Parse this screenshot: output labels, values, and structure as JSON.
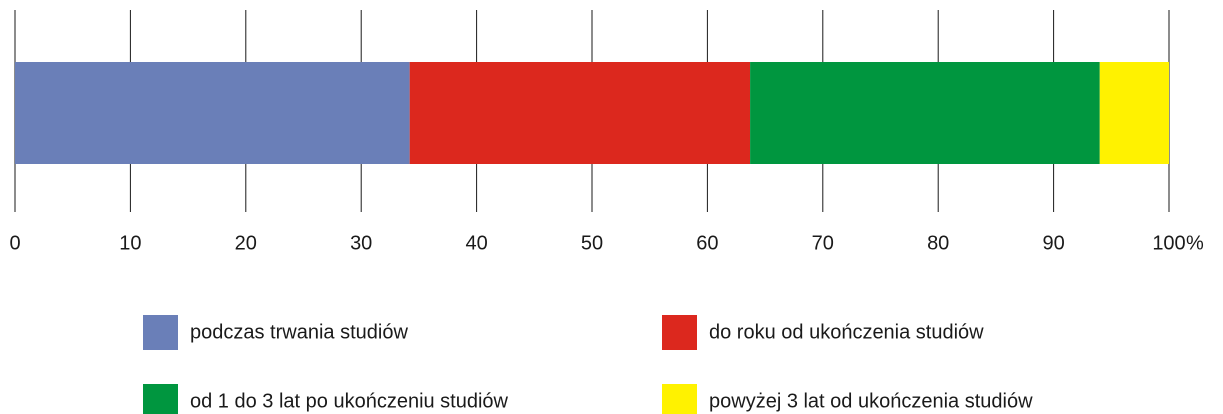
{
  "chart_data": {
    "type": "bar",
    "orientation": "horizontal",
    "stacked": true,
    "categories": [
      null
    ],
    "series": [
      {
        "name": "podczas trwania studiów",
        "color": "#6a7fb8",
        "values": [
          34.2
        ]
      },
      {
        "name": "do roku od ukończenia studiów",
        "color": "#dc281e",
        "values": [
          29.5
        ]
      },
      {
        "name": "od 1 do 3 lat po ukończeniu studiów",
        "color": "#00963f",
        "values": [
          30.3
        ]
      },
      {
        "name": "powyżej 3 lat od ukończenia studiów",
        "color": "#fff200",
        "values": [
          6.0
        ]
      }
    ],
    "xlabel": "%",
    "xlim": [
      0,
      100
    ],
    "xticks": [
      0,
      10,
      20,
      30,
      40,
      50,
      60,
      70,
      80,
      90,
      100
    ],
    "grid": true,
    "legend": "bottom"
  }
}
